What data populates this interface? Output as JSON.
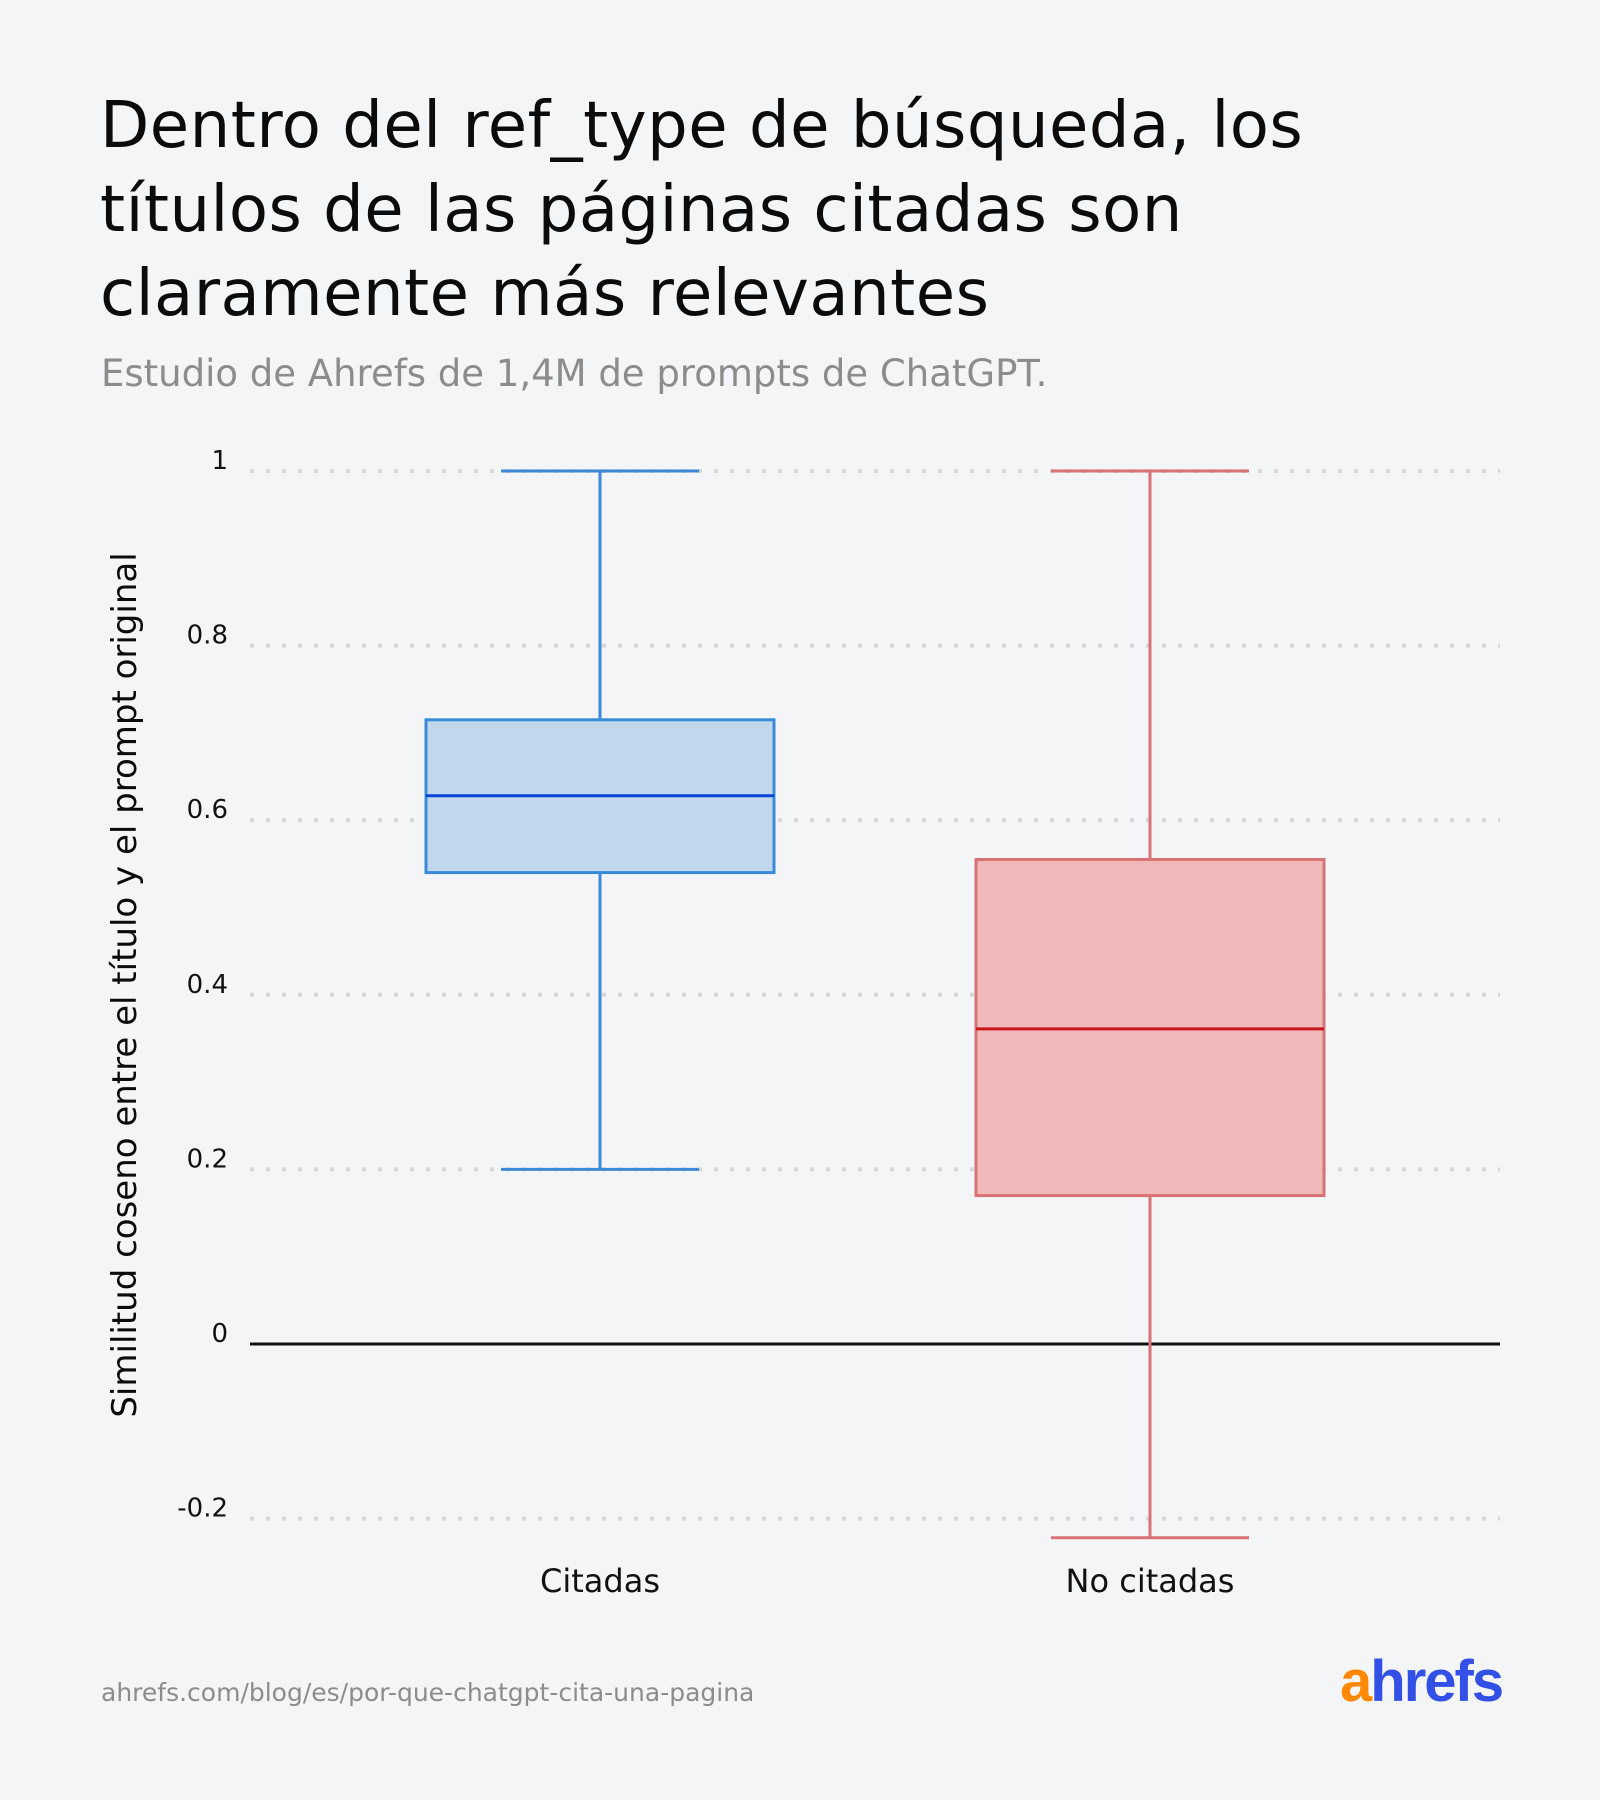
{
  "header": {
    "title": "Dentro del ref_type de búsqueda, los títulos de las páginas citadas son claramente más relevantes",
    "subtitle": "Estudio de Ahrefs de 1,4M de prompts de ChatGPT."
  },
  "footer": {
    "url": "ahrefs.com/blog/es/por-que-chatgpt-cita-una-pagina",
    "logo_text": "ahrefs",
    "logo_colors": {
      "a": "#ff8800",
      "rest": "#3350e6"
    }
  },
  "chart_data": {
    "type": "boxplot",
    "title": "",
    "xlabel": "",
    "ylabel": "Similitud coseno entre el título y el prompt original",
    "ylim": [
      -0.2,
      1
    ],
    "yticks": [
      1,
      0.8,
      0.6,
      0.4,
      0.2,
      0,
      -0.2
    ],
    "ytick_labels": [
      "1",
      "0.8",
      "0.6",
      "0.4",
      "0.2",
      "0",
      "-0.2"
    ],
    "grid": "horizontal dotted",
    "categories": [
      "Citadas",
      "No citadas"
    ],
    "series": [
      {
        "category": "Citadas",
        "whisker_low": 0.2,
        "q1": 0.54,
        "median": 0.628,
        "q3": 0.715,
        "whisker_high": 1.0,
        "stroke": "#3a8ad8",
        "fill": "#c1d7ec",
        "median_color": "#0a44d6"
      },
      {
        "category": "No citadas",
        "whisker_low": -0.222,
        "q1": 0.17,
        "median": 0.361,
        "q3": 0.555,
        "whisker_high": 1.0,
        "stroke": "#d87274",
        "fill": "#f0b9b9",
        "median_color": "#c8141c"
      }
    ]
  }
}
